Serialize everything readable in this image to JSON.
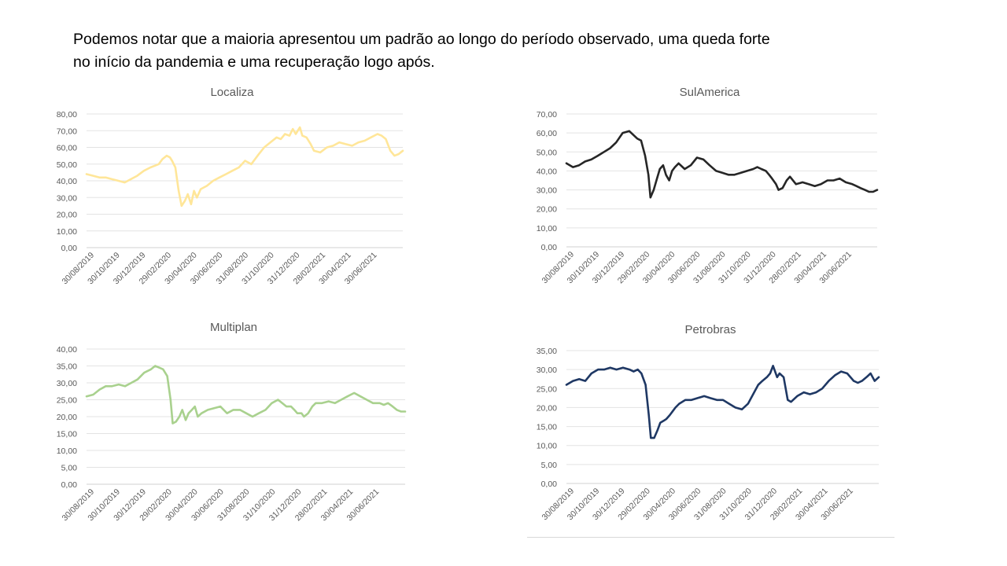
{
  "heading": {
    "line1": "Podemos notar que a maioria apresentou um padrão ao longo do período observado, uma queda forte",
    "line2": "no início da pandemia e uma recuperação logo após."
  },
  "chart_data": [
    {
      "type": "line",
      "title": "Localiza",
      "color": "#ffe699",
      "ylim": [
        0,
        80
      ],
      "yticks": [
        "0,00",
        "10,00",
        "20,00",
        "30,00",
        "40,00",
        "50,00",
        "60,00",
        "70,00",
        "80,00"
      ],
      "xtick_labels": [
        "30/08/2019",
        "30/10/2019",
        "30/12/2019",
        "29/02/2020",
        "30/04/2020",
        "30/06/2020",
        "31/08/2020",
        "31/10/2020",
        "31/12/2020",
        "28/02/2021",
        "30/04/2021",
        "30/06/2021"
      ],
      "grid": true,
      "series": [
        {
          "x": [
            "2019-08-30",
            "2019-09-15",
            "2019-09-30",
            "2019-10-15",
            "2019-10-30",
            "2019-11-15",
            "2019-11-30",
            "2019-12-15",
            "2019-12-30",
            "2020-01-15",
            "2020-01-31",
            "2020-02-10",
            "2020-02-20",
            "2020-02-29",
            "2020-03-10",
            "2020-03-18",
            "2020-03-23",
            "2020-03-31",
            "2020-04-08",
            "2020-04-15",
            "2020-04-23",
            "2020-04-30",
            "2020-05-08",
            "2020-05-15",
            "2020-05-22",
            "2020-05-31",
            "2020-06-15",
            "2020-06-30",
            "2020-07-15",
            "2020-07-31",
            "2020-08-15",
            "2020-08-31",
            "2020-09-15",
            "2020-09-30",
            "2020-10-15",
            "2020-10-31",
            "2020-11-15",
            "2020-11-30",
            "2020-12-10",
            "2020-12-20",
            "2020-12-31",
            "2021-01-08",
            "2021-01-15",
            "2021-01-25",
            "2021-01-31",
            "2021-02-10",
            "2021-02-20",
            "2021-02-28",
            "2021-03-15",
            "2021-03-31",
            "2021-04-15",
            "2021-04-30",
            "2021-05-15",
            "2021-05-31",
            "2021-06-15",
            "2021-06-30",
            "2021-07-15",
            "2021-07-31",
            "2021-08-10",
            "2021-08-20",
            "2021-08-31",
            "2021-09-10",
            "2021-09-20",
            "2021-09-30"
          ],
          "y": [
            44,
            43,
            42,
            42,
            41,
            40,
            39,
            41,
            43,
            46,
            48,
            49,
            50,
            53,
            55,
            54,
            52,
            48,
            34,
            25,
            28,
            32,
            26,
            34,
            30,
            35,
            37,
            40,
            42,
            44,
            46,
            48,
            52,
            50,
            55,
            60,
            63,
            66,
            65,
            68,
            67,
            71,
            68,
            72,
            67,
            66,
            62,
            58,
            57,
            60,
            61,
            63,
            62,
            61,
            63,
            64,
            66,
            68,
            67,
            65,
            58,
            55,
            56,
            58
          ]
        }
      ]
    },
    {
      "type": "line",
      "title": "SulAmerica",
      "color": "#262626",
      "ylim": [
        0,
        70
      ],
      "yticks": [
        "0,00",
        "10,00",
        "20,00",
        "30,00",
        "40,00",
        "50,00",
        "60,00",
        "70,00"
      ],
      "xtick_labels": [
        "30/08/2019",
        "30/10/2019",
        "30/12/2019",
        "29/02/2020",
        "30/04/2020",
        "30/06/2020",
        "31/08/2020",
        "31/10/2020",
        "31/12/2020",
        "28/02/2021",
        "30/04/2021",
        "30/06/2021"
      ],
      "grid": true,
      "series": [
        {
          "x": [
            "2019-08-30",
            "2019-09-15",
            "2019-09-30",
            "2019-10-15",
            "2019-10-30",
            "2019-11-15",
            "2019-11-30",
            "2019-12-15",
            "2019-12-30",
            "2020-01-15",
            "2020-01-31",
            "2020-02-10",
            "2020-02-20",
            "2020-02-29",
            "2020-03-10",
            "2020-03-18",
            "2020-03-23",
            "2020-03-31",
            "2020-04-08",
            "2020-04-15",
            "2020-04-23",
            "2020-04-30",
            "2020-05-08",
            "2020-05-15",
            "2020-05-22",
            "2020-05-31",
            "2020-06-15",
            "2020-06-30",
            "2020-07-15",
            "2020-07-31",
            "2020-08-15",
            "2020-08-31",
            "2020-09-15",
            "2020-09-30",
            "2020-10-15",
            "2020-10-31",
            "2020-11-15",
            "2020-11-30",
            "2020-12-10",
            "2020-12-20",
            "2020-12-31",
            "2021-01-08",
            "2021-01-15",
            "2021-01-25",
            "2021-01-31",
            "2021-02-10",
            "2021-02-20",
            "2021-02-28",
            "2021-03-15",
            "2021-03-31",
            "2021-04-15",
            "2021-04-30",
            "2021-05-15",
            "2021-05-31",
            "2021-06-15",
            "2021-06-30",
            "2021-07-15",
            "2021-07-31",
            "2021-08-10",
            "2021-08-20",
            "2021-08-31",
            "2021-09-10",
            "2021-09-20",
            "2021-09-30"
          ],
          "y": [
            44,
            42,
            43,
            45,
            46,
            48,
            50,
            52,
            55,
            60,
            61,
            59,
            57,
            56,
            48,
            38,
            26,
            30,
            36,
            41,
            43,
            38,
            35,
            40,
            42,
            44,
            41,
            43,
            47,
            46,
            43,
            40,
            39,
            38,
            38,
            39,
            40,
            41,
            42,
            41,
            40,
            38,
            36,
            33,
            30,
            31,
            35,
            37,
            33,
            34,
            33,
            32,
            33,
            35,
            35,
            36,
            34,
            33,
            32,
            31,
            30,
            29,
            29,
            30
          ]
        }
      ]
    },
    {
      "type": "line",
      "title": "Multiplan",
      "color": "#a9d18e",
      "ylim": [
        0,
        40
      ],
      "yticks": [
        "0,00",
        "5,00",
        "10,00",
        "15,00",
        "20,00",
        "25,00",
        "30,00",
        "35,00",
        "40,00"
      ],
      "xtick_labels": [
        "30/08/2019",
        "30/10/2019",
        "30/12/2019",
        "29/02/2020",
        "30/04/2020",
        "30/06/2020",
        "31/08/2020",
        "31/10/2020",
        "31/12/2020",
        "28/02/2021",
        "30/04/2021",
        "30/06/2021"
      ],
      "grid": true,
      "series": [
        {
          "x": [
            "2019-08-30",
            "2019-09-15",
            "2019-09-30",
            "2019-10-15",
            "2019-10-30",
            "2019-11-15",
            "2019-11-30",
            "2019-12-15",
            "2019-12-30",
            "2020-01-15",
            "2020-01-31",
            "2020-02-10",
            "2020-02-20",
            "2020-02-29",
            "2020-03-10",
            "2020-03-18",
            "2020-03-23",
            "2020-03-31",
            "2020-04-08",
            "2020-04-15",
            "2020-04-23",
            "2020-04-30",
            "2020-05-08",
            "2020-05-15",
            "2020-05-22",
            "2020-05-31",
            "2020-06-15",
            "2020-06-30",
            "2020-07-15",
            "2020-07-31",
            "2020-08-15",
            "2020-08-31",
            "2020-09-15",
            "2020-09-30",
            "2020-10-15",
            "2020-10-31",
            "2020-11-15",
            "2020-11-30",
            "2020-12-10",
            "2020-12-20",
            "2020-12-31",
            "2021-01-08",
            "2021-01-15",
            "2021-01-25",
            "2021-01-31",
            "2021-02-10",
            "2021-02-20",
            "2021-02-28",
            "2021-03-15",
            "2021-03-31",
            "2021-04-15",
            "2021-04-30",
            "2021-05-15",
            "2021-05-31",
            "2021-06-15",
            "2021-06-30",
            "2021-07-15",
            "2021-07-31",
            "2021-08-10",
            "2021-08-20",
            "2021-08-31",
            "2021-09-10",
            "2021-09-20",
            "2021-09-30"
          ],
          "y": [
            26,
            26.5,
            28,
            29,
            29,
            29.5,
            29,
            30,
            31,
            33,
            34,
            35,
            34.5,
            34,
            32,
            25,
            18,
            18.5,
            20,
            22,
            19,
            21,
            22,
            23,
            20,
            21,
            22,
            22.5,
            23,
            21,
            22,
            22,
            21,
            20,
            21,
            22,
            24,
            25,
            24,
            23,
            23,
            22,
            21,
            21,
            20,
            21,
            23,
            24,
            24,
            24.5,
            24,
            25,
            26,
            27,
            26,
            25,
            24,
            24,
            23.5,
            24,
            23,
            22,
            21.5,
            21.5
          ]
        }
      ]
    },
    {
      "type": "line",
      "title": "Petrobras",
      "color": "#1f3864",
      "ylim": [
        0,
        35
      ],
      "yticks": [
        "0,00",
        "5,00",
        "10,00",
        "15,00",
        "20,00",
        "25,00",
        "30,00",
        "35,00"
      ],
      "xtick_labels": [
        "30/08/2019",
        "30/10/2019",
        "30/12/2019",
        "29/02/2020",
        "30/04/2020",
        "30/06/2020",
        "31/08/2020",
        "31/10/2020",
        "31/12/2020",
        "28/02/2021",
        "30/04/2021",
        "30/06/2021"
      ],
      "grid": true,
      "series": [
        {
          "x": [
            "2019-08-30",
            "2019-09-15",
            "2019-09-30",
            "2019-10-15",
            "2019-10-30",
            "2019-11-15",
            "2019-11-30",
            "2019-12-15",
            "2019-12-30",
            "2020-01-15",
            "2020-01-31",
            "2020-02-10",
            "2020-02-20",
            "2020-02-29",
            "2020-03-10",
            "2020-03-18",
            "2020-03-23",
            "2020-03-31",
            "2020-04-08",
            "2020-04-15",
            "2020-04-23",
            "2020-04-30",
            "2020-05-08",
            "2020-05-15",
            "2020-05-22",
            "2020-05-31",
            "2020-06-15",
            "2020-06-30",
            "2020-07-15",
            "2020-07-31",
            "2020-08-15",
            "2020-08-31",
            "2020-09-15",
            "2020-09-30",
            "2020-10-15",
            "2020-10-31",
            "2020-11-15",
            "2020-11-30",
            "2020-12-10",
            "2020-12-20",
            "2020-12-31",
            "2021-01-08",
            "2021-01-15",
            "2021-01-25",
            "2021-01-31",
            "2021-02-10",
            "2021-02-20",
            "2021-02-28",
            "2021-03-15",
            "2021-03-31",
            "2021-04-15",
            "2021-04-30",
            "2021-05-15",
            "2021-05-31",
            "2021-06-15",
            "2021-06-30",
            "2021-07-15",
            "2021-07-31",
            "2021-08-10",
            "2021-08-20",
            "2021-08-31",
            "2021-09-10",
            "2021-09-20",
            "2021-09-30"
          ],
          "y": [
            26,
            27,
            27.5,
            27,
            29,
            30,
            30,
            30.5,
            30,
            30.5,
            30,
            29.5,
            30,
            29,
            26,
            18,
            12,
            12,
            14,
            16,
            16.5,
            17,
            18,
            19,
            20,
            21,
            22,
            22,
            22.5,
            23,
            22.5,
            22,
            22,
            21,
            20,
            19.5,
            21,
            24,
            26,
            27,
            28,
            29,
            31,
            28,
            29,
            28,
            22,
            21.5,
            23,
            24,
            23.5,
            24,
            25,
            27,
            28.5,
            29.5,
            29,
            27,
            26.5,
            27,
            28,
            29,
            27,
            28
          ]
        }
      ]
    }
  ]
}
